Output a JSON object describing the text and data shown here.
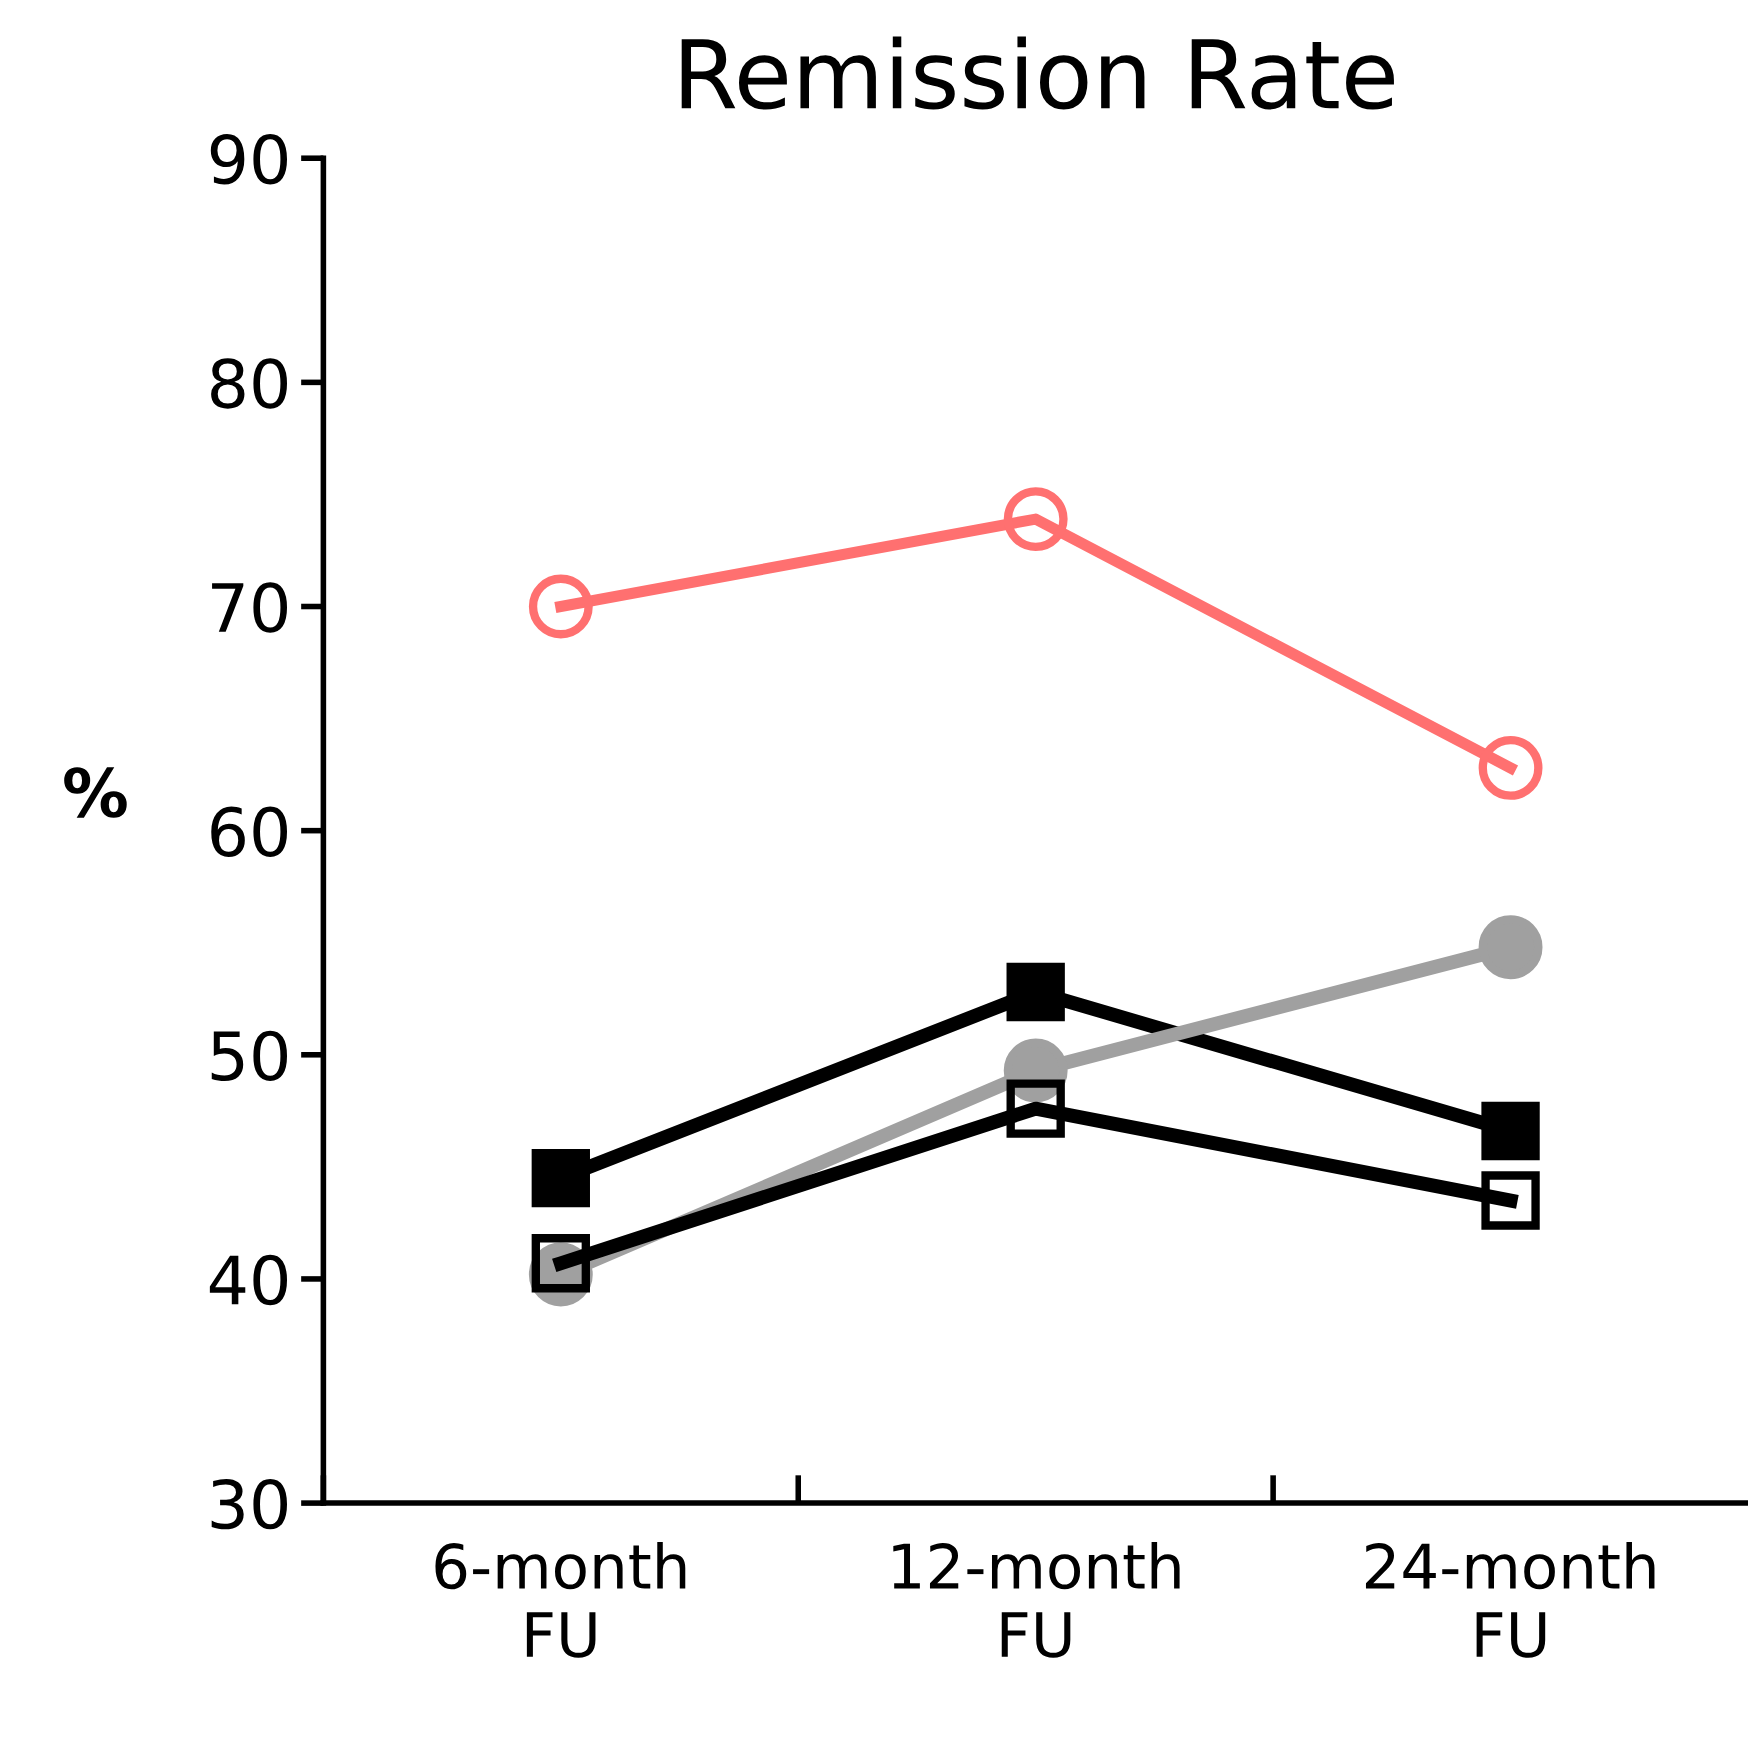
{
  "chart_data": {
    "type": "line",
    "title": "Remission Rate",
    "ylabel": "%",
    "categories": [
      "6-month\nFU",
      "12-month\nFU",
      "24-month\nFU"
    ],
    "series": [
      {
        "color": "#ff7070",
        "values": [
          70,
          73.9,
          62.8
        ],
        "marker": "circle"
      },
      {
        "color": "#000000",
        "values": [
          44.5,
          52.8,
          46.6
        ],
        "marker": "square"
      },
      {
        "color": "#000000",
        "values": [
          40.7,
          47.6,
          43.5
        ],
        "marker": "square"
      },
      {
        "color": "#a0a0a0",
        "values": [
          40.2,
          49.3,
          54.8
        ],
        "marker": "circle"
      }
    ],
    "ylim": [
      30,
      90
    ],
    "yticks": [
      30,
      40,
      50,
      60,
      70,
      80,
      90
    ],
    "grid": false,
    "legend": false
  }
}
